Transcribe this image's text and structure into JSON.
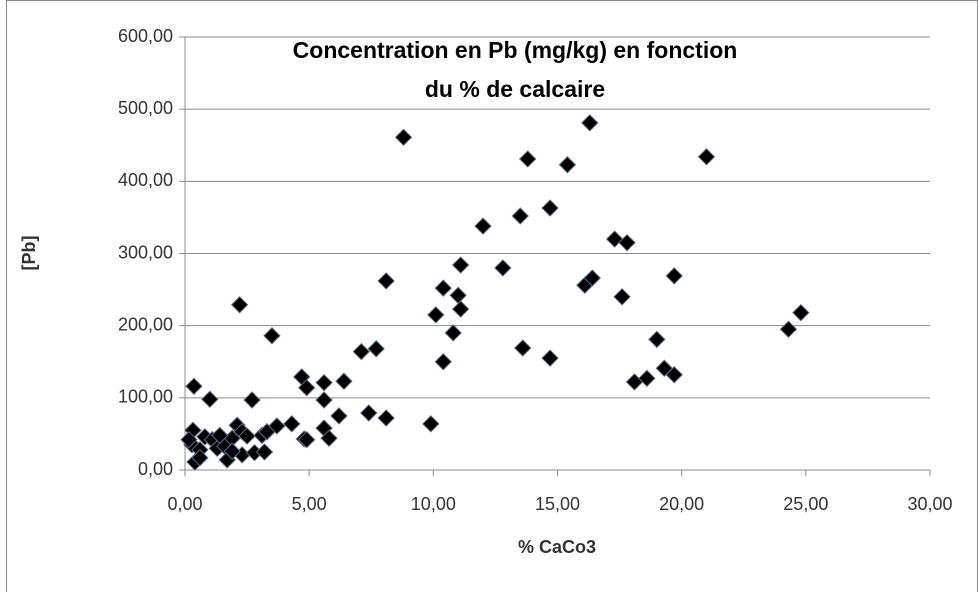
{
  "chart_data": {
    "type": "scatter",
    "title": [
      "Concentration  en Pb (mg/kg) en fonction",
      "du % de calcaire"
    ],
    "xlabel": "% CaCo3",
    "ylabel": "[Pb]",
    "color": "#000000",
    "grid": true,
    "xlim": [
      0,
      30
    ],
    "ylim": [
      0,
      600
    ],
    "xticks": [
      {
        "value": 0,
        "label": "0,00"
      },
      {
        "value": 5,
        "label": "5,00"
      },
      {
        "value": 10,
        "label": "10,00"
      },
      {
        "value": 15,
        "label": "15,00"
      },
      {
        "value": 20,
        "label": "20,00"
      },
      {
        "value": 25,
        "label": "25,00"
      },
      {
        "value": 30,
        "label": "30,00"
      }
    ],
    "yticks": [
      {
        "value": 0,
        "label": "0,00"
      },
      {
        "value": 100,
        "label": "100,00"
      },
      {
        "value": 200,
        "label": "200,00"
      },
      {
        "value": 300,
        "label": "300,00"
      },
      {
        "value": 400,
        "label": "400,00"
      },
      {
        "value": 500,
        "label": "500,00"
      },
      {
        "value": 600,
        "label": "600,00"
      }
    ],
    "x": [
      0.36,
      0.32,
      0.28,
      0.4,
      0.6,
      0.8,
      1.0,
      1.1,
      1.3,
      1.6,
      1.7,
      1.9,
      2.1,
      2.2,
      2.3,
      2.3,
      2.5,
      2.7,
      2.8,
      3.1,
      3.2,
      3.3,
      3.5,
      3.7,
      4.3,
      4.7,
      4.8,
      4.9,
      4.9,
      5.6,
      5.6,
      5.6,
      5.8,
      6.2,
      6.4,
      7.1,
      7.4,
      7.7,
      8.1,
      8.1,
      8.8,
      9.9,
      10.1,
      10.4,
      10.4,
      10.8,
      11.0,
      11.1,
      11.1,
      12.0,
      12.8,
      13.5,
      13.6,
      13.8,
      14.7,
      14.7,
      15.4,
      16.1,
      16.3,
      16.4,
      17.3,
      17.6,
      17.8,
      18.1,
      18.6,
      19.0,
      19.3,
      19.7,
      19.7,
      21.0,
      24.3,
      24.8,
      0.16,
      0.6,
      1.4,
      1.9
    ],
    "values": [
      116,
      55,
      35,
      11,
      28,
      46,
      98,
      42,
      30,
      33,
      14,
      44,
      62,
      229,
      53,
      21,
      47,
      97,
      24,
      48,
      25,
      53,
      186,
      61,
      64,
      129,
      43,
      114,
      42,
      121,
      97,
      58,
      44,
      75,
      123,
      164,
      79,
      168,
      262,
      72,
      461,
      64,
      215,
      252,
      150,
      190,
      242,
      284,
      223,
      338,
      280,
      352,
      169,
      431,
      363,
      155,
      423,
      256,
      481,
      266,
      320,
      240,
      315,
      122,
      127,
      181,
      141,
      132,
      269,
      434,
      195,
      218,
      42,
      17,
      48,
      26
    ]
  }
}
